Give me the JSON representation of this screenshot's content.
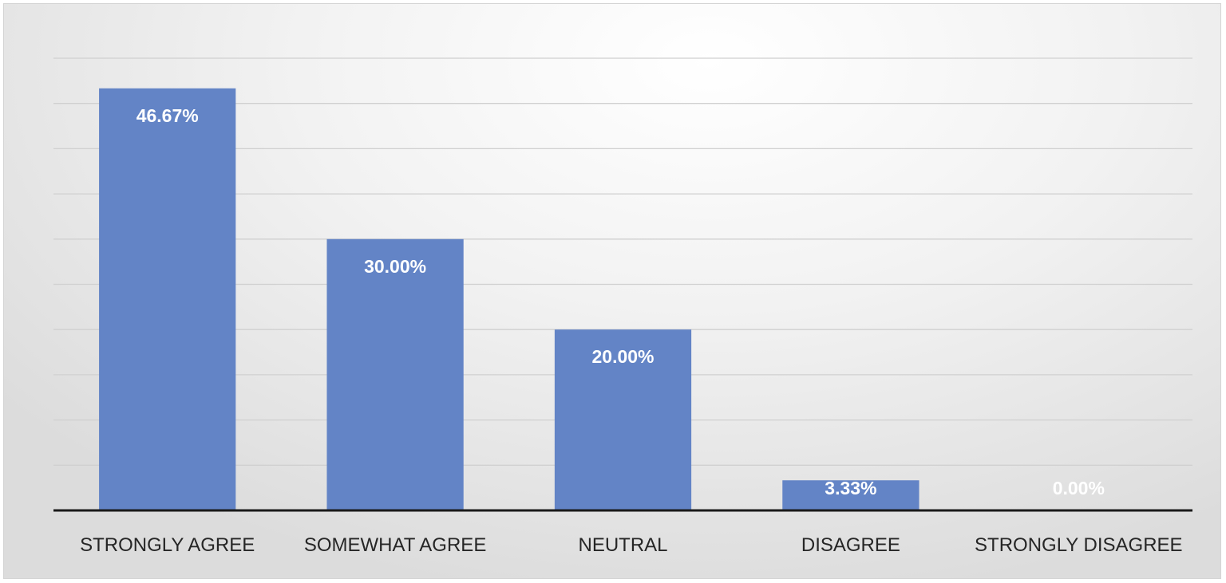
{
  "chart_data": {
    "type": "bar",
    "categories": [
      "STRONGLY AGREE",
      "SOMEWHAT AGREE",
      "NEUTRAL",
      "DISAGREE",
      "STRONGLY DISAGREE"
    ],
    "values": [
      46.67,
      30.0,
      20.0,
      3.33,
      0.0
    ],
    "data_labels": [
      "46.67%",
      "30.00%",
      "20.00%",
      "3.33%",
      "0.00%"
    ],
    "ylim": [
      0,
      50
    ],
    "grid": true,
    "y_axis_labels_visible": false,
    "bar_color": "#6384c6",
    "axis_color": "#1a1a1a",
    "gridline_color": "#d0d0d0"
  }
}
